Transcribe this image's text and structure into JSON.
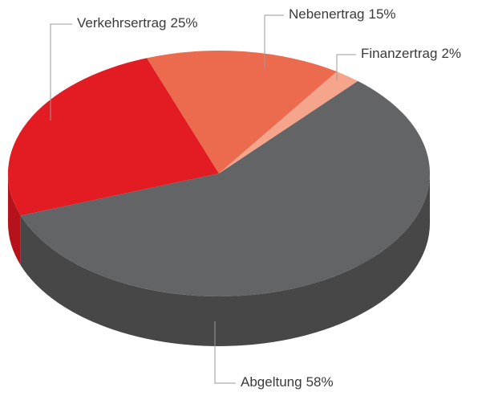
{
  "chart_data": {
    "type": "pie",
    "categories": [
      "Verkehrsertrag",
      "Nebenertrag",
      "Finanzertrag",
      "Abgeltung"
    ],
    "values": [
      25,
      15,
      2,
      58
    ],
    "value_labels": [
      "25%",
      "15%",
      "2%",
      "58%"
    ],
    "colors": [
      "#e31b23",
      "#ec6b4f",
      "#f4a58c",
      "#636466"
    ],
    "side_colors": [
      "#b5121b",
      "#c4533b",
      "#d08a74",
      "#474747"
    ]
  }
}
